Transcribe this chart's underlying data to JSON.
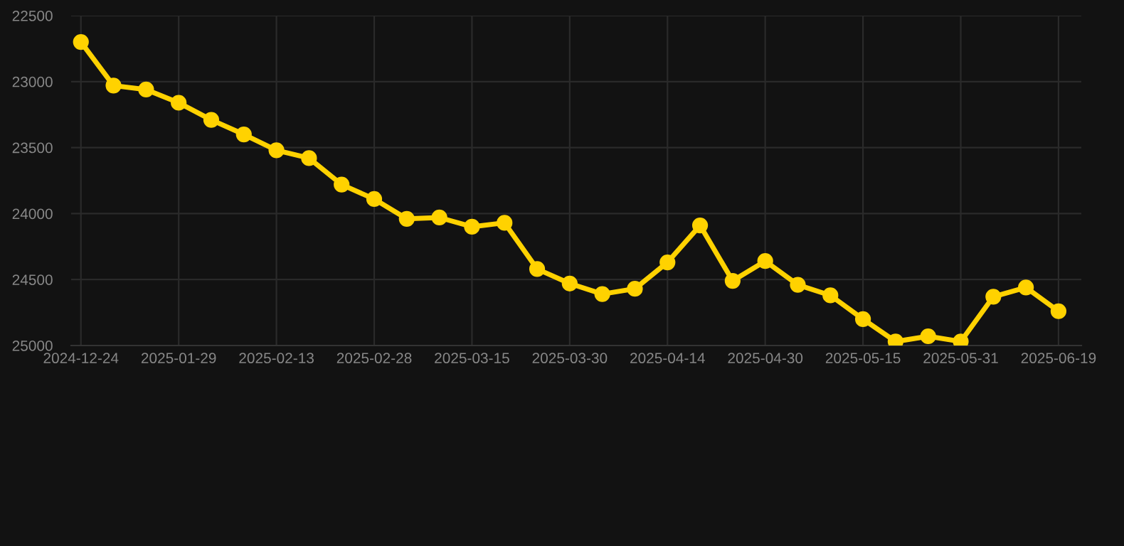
{
  "chart_data": {
    "type": "line",
    "categories": [
      "2024-12-24",
      null,
      null,
      "2025-01-29",
      null,
      null,
      "2025-02-13",
      null,
      null,
      "2025-02-28",
      null,
      null,
      "2025-03-15",
      null,
      null,
      "2025-03-30",
      null,
      null,
      "2025-04-14",
      null,
      null,
      "2025-04-30",
      null,
      null,
      "2025-05-15",
      null,
      null,
      "2025-05-31",
      null,
      null,
      "2025-06-19"
    ],
    "series": [
      {
        "color": "#ffd200",
        "values": [
          22700,
          23030,
          23060,
          23160,
          23290,
          23400,
          23520,
          23580,
          23780,
          23890,
          24040,
          24030,
          24100,
          24070,
          24420,
          24530,
          24610,
          24570,
          24370,
          24090,
          24510,
          24360,
          24540,
          24620,
          24800,
          24970,
          24930,
          24970,
          24630,
          24560,
          24740
        ]
      }
    ],
    "ylim": [
      25000,
      22500
    ],
    "yticks": [
      22500,
      23000,
      23500,
      24000,
      24500,
      25000
    ],
    "grid": true,
    "marker": "circle",
    "line_style": "solid"
  }
}
